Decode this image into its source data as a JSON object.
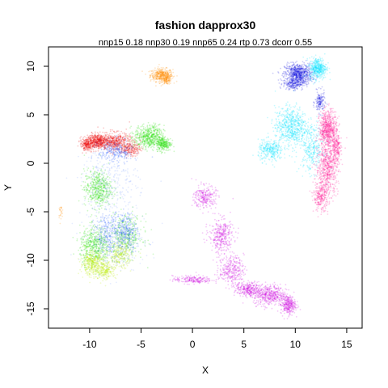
{
  "chart_data": {
    "type": "scatter",
    "title": "fashion dapprox30",
    "subtitle": "nnp15 0.18 nnp30 0.19 nnp65 0.24 rtp 0.73 dcorr 0.55",
    "xlabel": "X",
    "ylabel": "Y",
    "xlim": [
      -14,
      16.5
    ],
    "ylim": [
      -17,
      12
    ],
    "xticks": [
      -10,
      -5,
      0,
      5,
      10,
      15
    ],
    "yticks": [
      -15,
      -10,
      -5,
      0,
      5,
      10
    ],
    "xtick_labels": [
      "-10",
      "-5",
      "0",
      "5",
      "10",
      "15"
    ],
    "ytick_labels": [
      "-15",
      "-10",
      "-5",
      "0",
      "5",
      "10"
    ],
    "grid": false,
    "clusters": [
      {
        "color": "#ff8c00",
        "blobs": [
          [
            -3.0,
            9.1,
            0.9,
            0.55,
            380
          ],
          [
            -2.5,
            8.6,
            0.4,
            0.4,
            120
          ]
        ]
      },
      {
        "color": "#ff8c00",
        "blobs": [
          [
            -12.8,
            -5.0,
            0.2,
            0.5,
            25
          ]
        ]
      },
      {
        "color": "#1010dd",
        "blobs": [
          [
            10.3,
            9.2,
            1.1,
            0.9,
            700
          ],
          [
            12.4,
            6.3,
            0.4,
            0.9,
            150
          ],
          [
            9.8,
            8.2,
            0.8,
            0.5,
            200
          ]
        ]
      },
      {
        "color": "#00e5ff",
        "blobs": [
          [
            12.2,
            9.8,
            0.7,
            0.9,
            450
          ],
          [
            9.6,
            3.8,
            1.3,
            1.7,
            650
          ],
          [
            7.6,
            1.3,
            1.0,
            0.9,
            300
          ],
          [
            11.6,
            1.5,
            1.0,
            2.0,
            300
          ]
        ]
      },
      {
        "color": "#ff1493",
        "blobs": [
          [
            13.2,
            3.5,
            0.7,
            1.6,
            650
          ],
          [
            13.1,
            -0.5,
            0.9,
            2.2,
            600
          ],
          [
            12.5,
            -3.5,
            0.6,
            1.2,
            250
          ],
          [
            14.0,
            1.5,
            0.4,
            1.3,
            200
          ]
        ]
      },
      {
        "color": "#ee0000",
        "blobs": [
          [
            -9.2,
            2.3,
            0.9,
            0.6,
            500
          ],
          [
            -7.5,
            2.2,
            1.2,
            0.8,
            450
          ],
          [
            -10.3,
            1.9,
            0.5,
            0.5,
            200
          ],
          [
            -6.0,
            1.5,
            0.8,
            0.6,
            200
          ]
        ]
      },
      {
        "color": "#22dd00",
        "blobs": [
          [
            -4.2,
            2.7,
            1.2,
            1.0,
            550
          ],
          [
            -2.8,
            2.0,
            0.6,
            0.6,
            250
          ],
          [
            -9.2,
            -2.6,
            1.1,
            1.6,
            500
          ],
          [
            -9.5,
            -8.5,
            1.2,
            1.6,
            500
          ],
          [
            -6.5,
            -7.5,
            1.4,
            1.8,
            350
          ]
        ]
      },
      {
        "color": "#2255ff",
        "blobs": [
          [
            -7.5,
            1.2,
            1.4,
            1.0,
            250
          ],
          [
            -8.0,
            -7.3,
            1.3,
            1.7,
            280
          ],
          [
            -6.3,
            -7.0,
            0.8,
            1.6,
            220
          ]
        ]
      },
      {
        "color": "#bbee00",
        "blobs": [
          [
            -9.8,
            -10.3,
            0.9,
            1.0,
            350
          ],
          [
            -8.5,
            -11.0,
            0.9,
            0.8,
            250
          ],
          [
            -7.0,
            -9.5,
            0.9,
            1.1,
            250
          ]
        ]
      },
      {
        "color": "#88aaff",
        "blobs": [
          [
            -8.0,
            -2.0,
            2.3,
            3.0,
            320
          ],
          [
            -7.5,
            -8.0,
            2.3,
            2.5,
            320
          ]
        ]
      },
      {
        "color": "#cc00dd",
        "blobs": [
          [
            1.2,
            -3.5,
            0.9,
            1.0,
            250
          ],
          [
            2.8,
            -7.5,
            1.0,
            1.5,
            350
          ],
          [
            3.8,
            -11.0,
            1.0,
            1.2,
            300
          ],
          [
            5.5,
            -13.0,
            1.1,
            0.6,
            300
          ],
          [
            7.5,
            -13.6,
            1.3,
            0.9,
            450
          ],
          [
            9.3,
            -14.6,
            0.6,
            0.8,
            300
          ],
          [
            0.0,
            -12.0,
            1.6,
            0.35,
            200
          ]
        ]
      }
    ]
  }
}
